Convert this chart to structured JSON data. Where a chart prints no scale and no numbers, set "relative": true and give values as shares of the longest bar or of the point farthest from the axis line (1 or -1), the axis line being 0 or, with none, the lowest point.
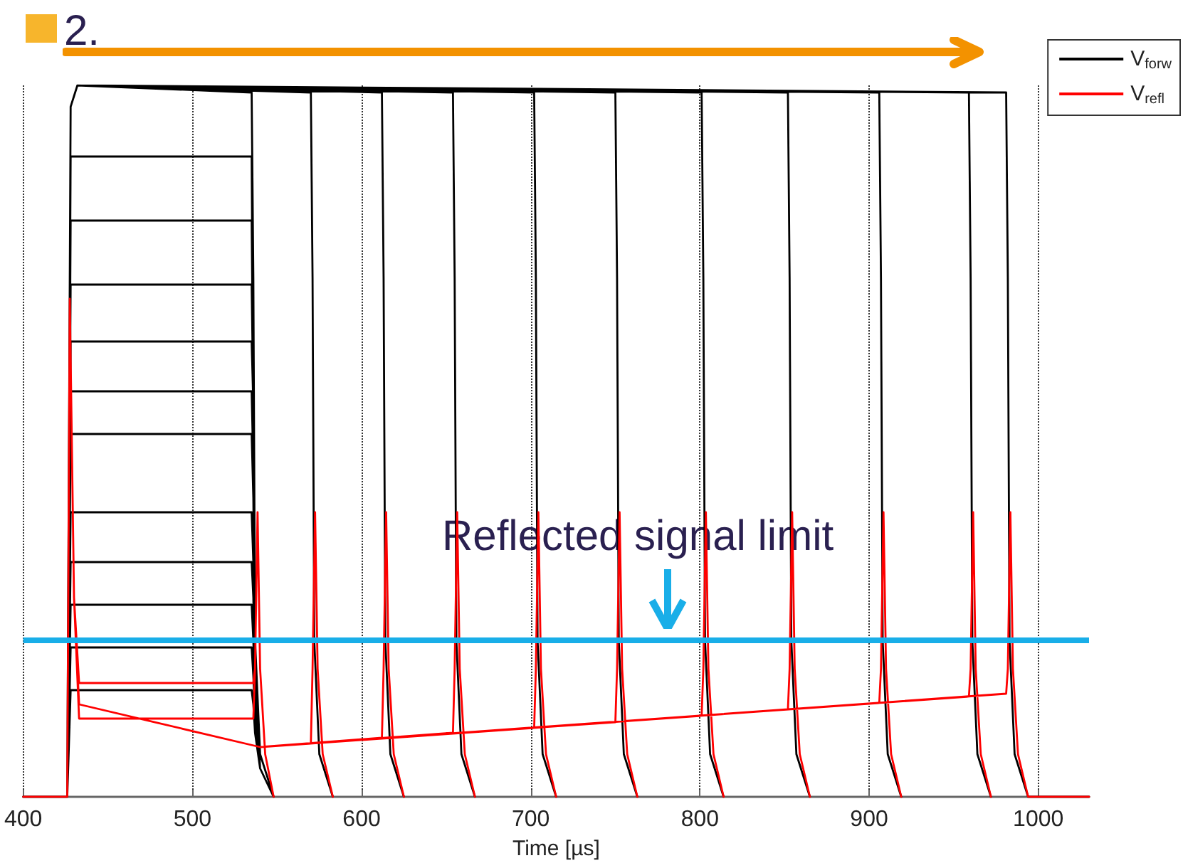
{
  "chart_data": {
    "type": "line",
    "title": "2.",
    "xlabel": "Time [µs]",
    "relative": true,
    "xlim": [
      400,
      1030
    ],
    "xticks": [
      400,
      500,
      600,
      700,
      800,
      900,
      1000
    ],
    "grid": "x",
    "legend": "top right",
    "marker": "none",
    "line_style": "solid",
    "ref_lines": [
      {
        "axis": "y",
        "value": 0.224,
        "label": "Reflected signal limit",
        "color": "#19aee8"
      }
    ],
    "series": [
      {
        "name": "V$_{forw}$",
        "color": "#000000",
        "x": [
          400,
          426,
          428,
          432,
          535,
          536,
          537,
          540,
          548,
          null,
          426,
          428,
          432,
          535,
          536,
          537,
          540,
          548,
          null,
          426,
          428,
          432,
          535,
          536,
          537,
          540,
          548,
          null,
          426,
          428,
          432,
          535,
          536,
          537,
          540,
          548,
          null,
          426,
          428,
          432,
          535,
          536,
          537,
          540,
          548,
          null,
          426,
          428,
          432,
          535,
          536,
          537,
          540,
          548,
          null,
          426,
          428,
          432,
          535,
          536,
          537,
          540,
          548,
          null,
          426,
          428,
          432,
          535,
          536,
          537,
          540,
          548,
          null,
          426,
          428,
          432,
          535,
          536,
          537,
          540,
          548,
          null,
          426,
          428,
          432,
          535,
          536,
          537,
          540,
          548,
          null,
          426,
          428,
          432,
          535,
          536,
          537,
          540,
          548,
          null,
          426,
          428,
          432,
          535,
          536,
          537,
          540,
          548,
          null,
          426,
          428,
          432,
          570,
          571,
          572,
          575,
          583,
          null,
          426,
          428,
          432,
          612,
          613,
          614,
          617,
          625,
          null,
          426,
          428,
          432,
          654,
          655,
          656,
          659,
          667,
          null,
          426,
          428,
          432,
          702,
          703,
          704,
          707,
          715,
          null,
          426,
          428,
          432,
          750,
          751,
          752,
          755,
          763,
          null,
          426,
          428,
          432,
          801,
          802,
          803,
          806,
          814,
          null,
          426,
          428,
          432,
          852,
          853,
          854,
          857,
          865,
          null,
          426,
          428,
          432,
          906,
          907,
          908,
          911,
          919,
          null,
          426,
          428,
          432,
          959,
          960,
          961,
          964,
          972,
          null,
          426,
          428,
          432,
          981,
          982,
          983,
          986,
          994,
          1030
        ],
        "values": [
          0,
          0,
          0.9,
          0.9,
          0.9,
          0.55,
          0.18,
          0.04,
          0,
          null,
          0,
          0.81,
          0.81,
          0.81,
          0.55,
          0.18,
          0.04,
          0,
          null,
          0,
          0.72,
          0.72,
          0.72,
          0.55,
          0.18,
          0.04,
          0,
          null,
          0,
          0.64,
          0.64,
          0.64,
          0.55,
          0.18,
          0.04,
          0,
          null,
          0,
          0.57,
          0.57,
          0.57,
          0.46,
          0.18,
          0.04,
          0,
          null,
          0,
          0.51,
          0.51,
          0.51,
          0.42,
          0.18,
          0.04,
          0,
          null,
          0,
          0.4,
          0.4,
          0.4,
          0.33,
          0.17,
          0.04,
          0,
          null,
          0,
          0.33,
          0.33,
          0.33,
          0.28,
          0.15,
          0.04,
          0,
          null,
          0,
          0.27,
          0.27,
          0.27,
          0.22,
          0.13,
          0.04,
          0,
          null,
          0,
          0.21,
          0.21,
          0.21,
          0.17,
          0.11,
          0.04,
          0,
          null,
          0,
          0.15,
          0.15,
          0.15,
          0.13,
          0.09,
          0.04,
          0,
          null,
          0,
          0.97,
          1,
          0.99,
          0.73,
          0.22,
          0.06,
          0,
          null,
          0,
          0.97,
          1,
          0.99,
          0.73,
          0.22,
          0.06,
          0,
          null,
          0,
          0.97,
          1,
          0.99,
          0.73,
          0.22,
          0.06,
          0,
          null,
          0,
          0.97,
          1,
          0.99,
          0.73,
          0.22,
          0.06,
          0,
          null,
          0,
          0.97,
          1,
          0.99,
          0.73,
          0.22,
          0.06,
          0,
          null,
          0,
          0.97,
          1,
          0.99,
          0.73,
          0.22,
          0.06,
          0,
          null,
          0,
          0.97,
          1,
          0.99,
          0.73,
          0.22,
          0.06,
          0,
          null,
          0,
          0.97,
          1,
          0.99,
          0.73,
          0.22,
          0.06,
          0,
          null,
          0,
          0.97,
          1,
          0.99,
          0.73,
          0.22,
          0.06,
          0,
          null,
          0,
          0.97,
          1,
          0.99,
          0.73,
          0.22,
          0.06,
          0,
          null,
          0,
          0.97,
          1,
          0.99,
          0.73,
          0.22,
          0.06,
          0,
          0
        ]
      },
      {
        "name": "V$_{refl}$",
        "color": "#ff0000",
        "x": [
          400,
          426,
          427.5,
          430,
          433,
          536,
          537,
          538.5,
          540,
          543,
          548,
          null,
          426,
          427.5,
          430,
          433,
          536,
          537,
          538.5,
          540,
          543,
          548,
          null,
          426,
          427.5,
          430,
          433,
          540,
          570,
          571,
          572.5,
          574,
          577,
          583,
          null,
          426,
          427.5,
          430,
          433,
          540,
          612,
          613,
          614.5,
          616,
          619,
          625,
          null,
          426,
          427.5,
          430,
          433,
          540,
          654,
          655,
          656.5,
          658,
          661,
          667,
          null,
          426,
          427.5,
          430,
          433,
          540,
          702,
          703,
          704.5,
          706,
          709,
          715,
          null,
          426,
          427.5,
          430,
          433,
          540,
          750,
          751,
          752.5,
          754,
          757,
          763,
          null,
          426,
          427.5,
          430,
          433,
          540,
          801,
          802,
          803.5,
          805,
          808,
          814,
          null,
          426,
          427.5,
          430,
          433,
          540,
          852,
          853,
          854.5,
          856,
          859,
          865,
          null,
          426,
          427.5,
          430,
          433,
          540,
          906,
          907,
          908.5,
          910,
          913,
          919,
          null,
          426,
          427.5,
          430,
          433,
          540,
          959,
          960,
          961.5,
          963,
          966,
          972,
          null,
          426,
          427.5,
          430,
          433,
          540,
          981,
          982,
          983.5,
          985,
          988,
          994,
          1030
        ],
        "values": [
          0,
          0,
          0.7,
          0.28,
          0.11,
          0.11,
          0.18,
          0.4,
          0.18,
          0.06,
          0,
          null,
          0,
          0.7,
          0.28,
          0.16,
          0.16,
          0.18,
          0.4,
          0.18,
          0.06,
          0,
          null,
          0,
          0.7,
          0.28,
          0.13,
          0.07,
          0.075,
          0.18,
          0.4,
          0.18,
          0.06,
          0,
          null,
          0,
          0.7,
          0.28,
          0.13,
          0.07,
          0.083,
          0.18,
          0.4,
          0.18,
          0.06,
          0,
          null,
          0,
          0.7,
          0.28,
          0.13,
          0.07,
          0.09,
          0.18,
          0.4,
          0.18,
          0.06,
          0,
          null,
          0,
          0.7,
          0.28,
          0.13,
          0.07,
          0.097,
          0.18,
          0.4,
          0.18,
          0.06,
          0,
          null,
          0,
          0.7,
          0.28,
          0.13,
          0.07,
          0.105,
          0.18,
          0.4,
          0.18,
          0.06,
          0,
          null,
          0,
          0.7,
          0.28,
          0.13,
          0.07,
          0.114,
          0.18,
          0.4,
          0.18,
          0.06,
          0,
          null,
          0,
          0.7,
          0.28,
          0.13,
          0.07,
          0.123,
          0.18,
          0.4,
          0.18,
          0.06,
          0,
          null,
          0,
          0.7,
          0.28,
          0.13,
          0.07,
          0.132,
          0.18,
          0.4,
          0.18,
          0.06,
          0,
          null,
          0,
          0.7,
          0.28,
          0.13,
          0.07,
          0.141,
          0.18,
          0.4,
          0.18,
          0.06,
          0,
          null,
          0,
          0.7,
          0.28,
          0.13,
          0.07,
          0.145,
          0.18,
          0.4,
          0.18,
          0.06,
          0,
          0
        ]
      }
    ]
  }
}
